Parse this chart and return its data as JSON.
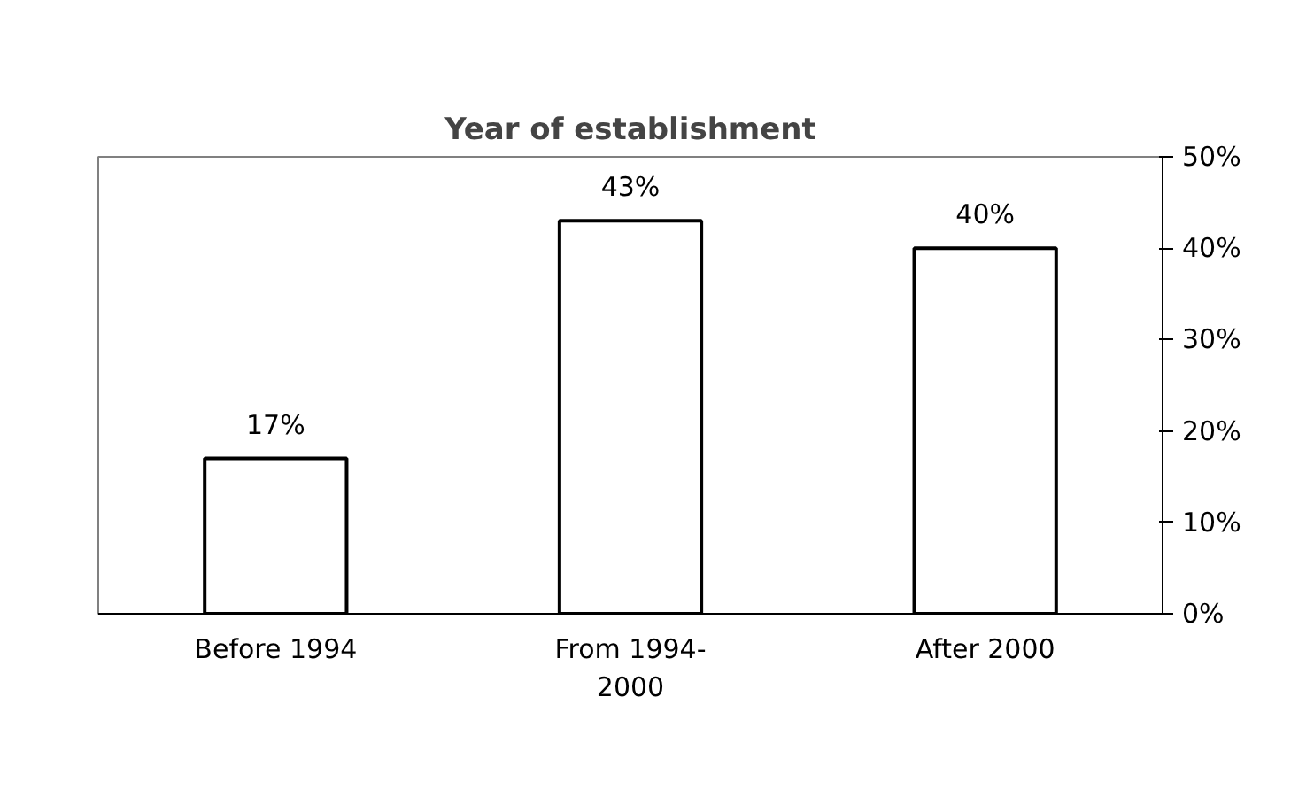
{
  "chart_data": {
    "type": "bar",
    "title": "Year of establishment",
    "categories": [
      "Before 1994",
      "From 1994-2000",
      "After 2000"
    ],
    "values": [
      17,
      43,
      40
    ],
    "value_labels": [
      "17%",
      "43%",
      "40%"
    ],
    "color": "#ffffff",
    "ylim": [
      0,
      50
    ],
    "yticks": [
      {
        "value": 0,
        "label": "0%"
      },
      {
        "value": 10,
        "label": "10%"
      },
      {
        "value": 20,
        "label": "20%"
      },
      {
        "value": 30,
        "label": "30%"
      },
      {
        "value": 40,
        "label": "40%"
      },
      {
        "value": 50,
        "label": "50%"
      }
    ],
    "grid": false
  }
}
